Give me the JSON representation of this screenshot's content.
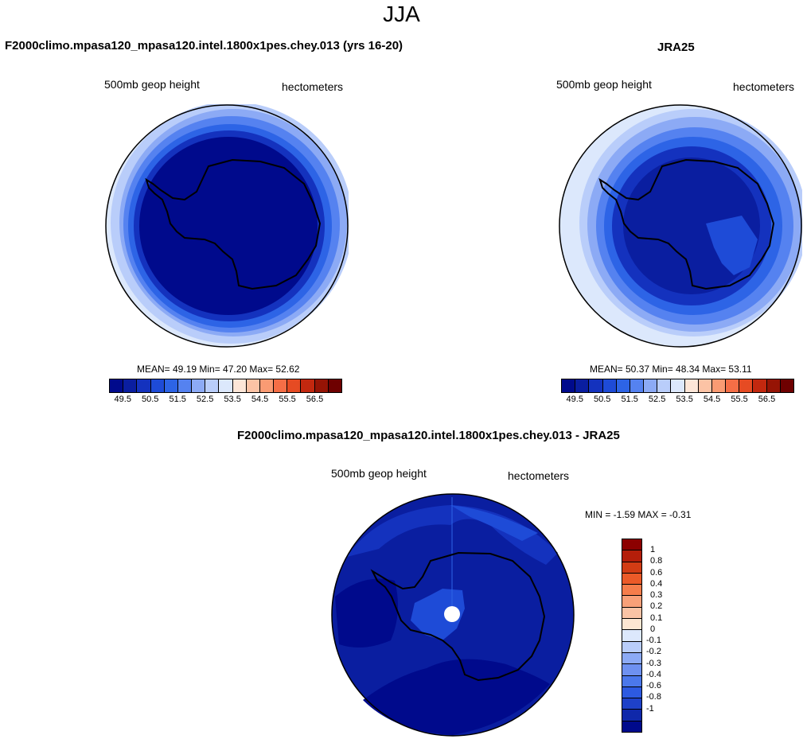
{
  "suptitle": "JJA",
  "panels": {
    "model": {
      "title": "F2000climo.mpasa120_mpasa120.intel.1800x1pes.chey.013 (yrs 16-20)",
      "left_label": "500mb geop height",
      "right_label": "hectometers",
      "stats": "MEAN=  49.19  Min=  47.20  Max=  52.62"
    },
    "obs": {
      "title": "JRA25",
      "left_label": "500mb geop height",
      "right_label": "hectometers",
      "stats": "MEAN=  50.37  Min=  48.34  Max=  53.11"
    },
    "diff": {
      "title": "F2000climo.mpasa120_mpasa120.intel.1800x1pes.chey.013 - JRA25",
      "left_label": "500mb geop height",
      "right_label": "hectometers",
      "stats": "MIN =  -1.59 MAX =  -0.31"
    }
  },
  "colorbar_main": {
    "colors": [
      "#000a8c",
      "#0a1ea0",
      "#1432be",
      "#1e4bd7",
      "#2d64e6",
      "#5582f0",
      "#8caaf5",
      "#b9cdfa",
      "#dce8fc",
      "#fde6d7",
      "#fcc3a5",
      "#fa9b73",
      "#f56e46",
      "#e64b23",
      "#c3280f",
      "#961405",
      "#6e0000"
    ],
    "ticks": [
      "49.5",
      "50.5",
      "51.5",
      "52.5",
      "53.5",
      "54.5",
      "55.5",
      "56.5"
    ]
  },
  "colorbar_diff": {
    "colors": [
      "#8c0000",
      "#b41e0a",
      "#d23c14",
      "#eb5a28",
      "#f57d4b",
      "#f8a078",
      "#fac3a5",
      "#fde6d2",
      "#dce8fc",
      "#b9cdfa",
      "#8caaf5",
      "#6e91f0",
      "#4b78eb",
      "#2d5ae1",
      "#1e41c8",
      "#0f28aa",
      "#000a8c"
    ],
    "ticks": [
      "1",
      "0.8",
      "0.6",
      "0.4",
      "0.3",
      "0.2",
      "0.1",
      "0",
      "-0.1",
      "-0.2",
      "-0.3",
      "-0.4",
      "-0.6",
      "-0.8",
      "-1"
    ]
  }
}
